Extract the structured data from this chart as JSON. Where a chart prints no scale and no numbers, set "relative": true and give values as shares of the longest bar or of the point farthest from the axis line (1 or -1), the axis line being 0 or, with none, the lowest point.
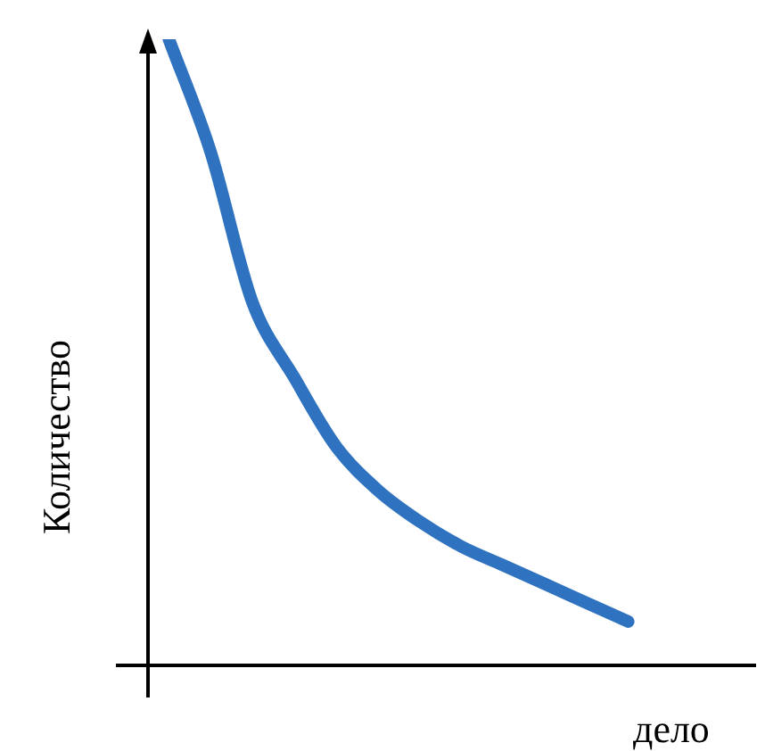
{
  "chart_data": {
    "type": "line",
    "relative": true,
    "xlabel": "дело",
    "ylabel": "Количество",
    "categories": [
      null,
      null,
      null,
      null,
      null,
      null,
      null,
      null,
      null,
      null,
      null,
      null
    ],
    "series": [
      {
        "color": "#2f73c0",
        "values": [
          1.0,
          0.82,
          0.58,
          0.46,
          0.35,
          0.28,
          0.23,
          0.19,
          0.16,
          0.13,
          0.1,
          0.07
        ]
      }
    ],
    "legend": false,
    "marker": "none",
    "line_style": "solid"
  }
}
